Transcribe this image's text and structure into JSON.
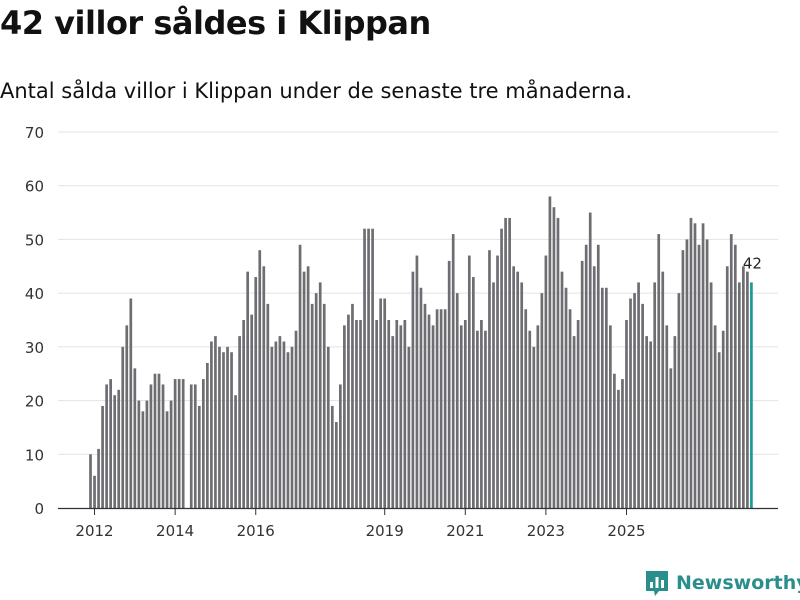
{
  "header": {
    "title": "42 villor såldes i Klippan",
    "subtitle": "Antal sålda villor i Klippan under de senaste tre månaderna."
  },
  "brand": {
    "name": "Newsworthy"
  },
  "colors": {
    "bar": "#6e6d72",
    "highlight": "#1a9a94",
    "grid": "#e3e3e3",
    "brand": "#2a8f8c"
  },
  "chart_data": {
    "type": "bar",
    "title": "42 villor såldes i Klippan",
    "subtitle": "Antal sålda villor i Klippan under de senaste tre månaderna.",
    "xlabel": "",
    "ylabel": "",
    "ylim": [
      0,
      70
    ],
    "yticks": [
      0,
      10,
      20,
      30,
      40,
      50,
      60,
      70
    ],
    "xticks": [
      {
        "label": "2012",
        "index": 1
      },
      {
        "label": "2014",
        "index": 21
      },
      {
        "label": "2016",
        "index": 41
      },
      {
        "label": "2019",
        "index": 73
      },
      {
        "label": "2021",
        "index": 93
      },
      {
        "label": "2023",
        "index": 113
      },
      {
        "label": "2025",
        "index": 133
      }
    ],
    "grid": true,
    "highlight_label": "42",
    "categories_start": "2011-12",
    "values": [
      10,
      6,
      11,
      19,
      23,
      24,
      21,
      22,
      30,
      34,
      39,
      26,
      20,
      18,
      20,
      23,
      25,
      25,
      23,
      18,
      20,
      24,
      24,
      24,
      0,
      23,
      23,
      19,
      24,
      27,
      31,
      32,
      30,
      29,
      30,
      29,
      21,
      32,
      35,
      44,
      36,
      43,
      48,
      45,
      38,
      30,
      31,
      32,
      31,
      29,
      30,
      33,
      49,
      44,
      45,
      38,
      40,
      42,
      38,
      30,
      19,
      16,
      23,
      34,
      36,
      38,
      35,
      35,
      52,
      52,
      52,
      35,
      39,
      39,
      35,
      32,
      35,
      34,
      35,
      30,
      44,
      47,
      41,
      38,
      36,
      34,
      37,
      37,
      37,
      46,
      51,
      40,
      34,
      35,
      47,
      43,
      33,
      35,
      33,
      48,
      42,
      47,
      52,
      54,
      54,
      45,
      44,
      42,
      37,
      33,
      30,
      34,
      40,
      47,
      58,
      56,
      54,
      44,
      41,
      37,
      32,
      35,
      46,
      49,
      55,
      45,
      49,
      41,
      41,
      34,
      25,
      22,
      24,
      35,
      39,
      40,
      42,
      38,
      32,
      31,
      42,
      51,
      44,
      34,
      26,
      32,
      40,
      48,
      50,
      54,
      53,
      49,
      53,
      50,
      42,
      34,
      29,
      33,
      45,
      51,
      49,
      42,
      45,
      44,
      42
    ]
  }
}
